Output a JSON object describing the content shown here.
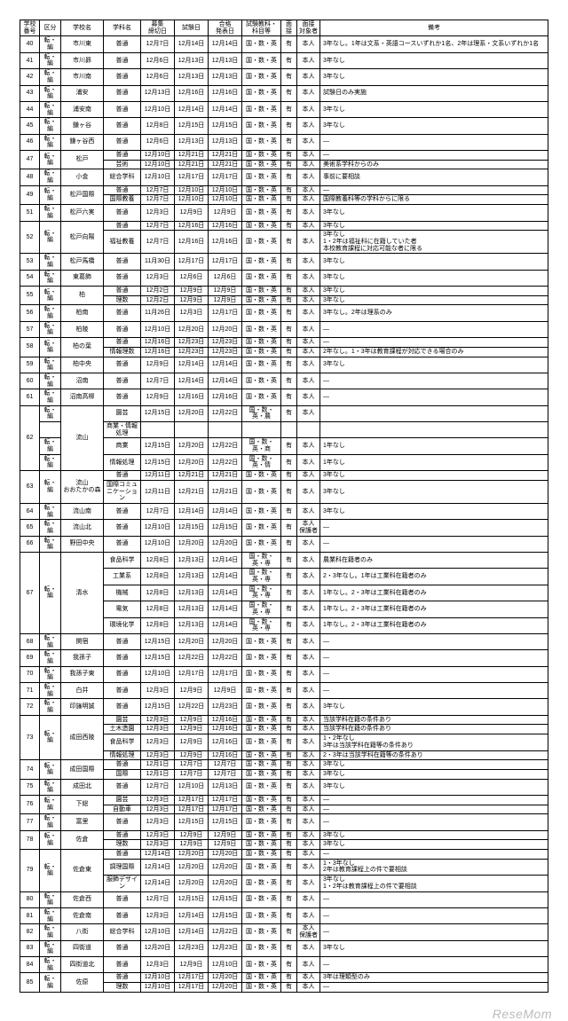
{
  "headers": [
    "学校\n番号",
    "区分",
    "学校名",
    "学科名",
    "募集\n締切日",
    "試験日",
    "合格\n発表日",
    "試験教科・\n科目等",
    "面接",
    "面接\n対象者",
    "備考"
  ],
  "footer": "ReseMom",
  "rows": [
    {
      "n": "40",
      "k": "転・編",
      "s": "市川東",
      "d": "普通",
      "a": "12月7日",
      "b": "12月14日",
      "c": "12月14日",
      "u": "国・数・英",
      "i": "有",
      "w": "本人",
      "r": "3年なし。1年は文系・英語コースいずれか1名、2年は理系・文系いずれか1名"
    },
    {
      "n": "41",
      "k": "転・編",
      "s": "市川昴",
      "d": "普通",
      "a": "12月6日",
      "b": "12月13日",
      "c": "12月13日",
      "u": "国・数・英",
      "i": "有",
      "w": "本人",
      "r": "3年なし"
    },
    {
      "n": "42",
      "k": "転・編",
      "s": "市川南",
      "d": "普通",
      "a": "12月6日",
      "b": "12月13日",
      "c": "12月13日",
      "u": "国・数・英",
      "i": "有",
      "w": "本人",
      "r": "3年なし"
    },
    {
      "n": "43",
      "k": "転・編",
      "s": "浦安",
      "d": "普通",
      "a": "12月13日",
      "b": "12月16日",
      "c": "12月16日",
      "u": "国・数・英",
      "i": "有",
      "w": "本人",
      "r": "試験日のみ実施"
    },
    {
      "n": "44",
      "k": "転・編",
      "s": "浦安南",
      "d": "普通",
      "a": "12月10日",
      "b": "12月14日",
      "c": "12月14日",
      "u": "国・数・英",
      "i": "有",
      "w": "本人",
      "r": "3年なし"
    },
    {
      "n": "45",
      "k": "転・編",
      "s": "鎌ヶ谷",
      "d": "普通",
      "a": "12月8日",
      "b": "12月15日",
      "c": "12月15日",
      "u": "国・数・英",
      "i": "有",
      "w": "本人",
      "r": "3年なし"
    },
    {
      "n": "46",
      "k": "転・編",
      "s": "鎌ヶ谷西",
      "d": "普通",
      "a": "12月6日",
      "b": "12月13日",
      "c": "12月13日",
      "u": "国・数・英",
      "i": "有",
      "w": "本人",
      "r": "—"
    },
    {
      "n": "47",
      "k": "転・編",
      "s": "松戸",
      "d": "普通",
      "a": "12月10日",
      "b": "12月21日",
      "c": "12月21日",
      "u": "国・数・英",
      "i": "有",
      "w": "本人",
      "r": "—",
      "rs": {
        "n": 2,
        "k": 2,
        "s": 2
      }
    },
    {
      "d": "芸術",
      "a": "12月10日",
      "b": "12月21日",
      "c": "12月21日",
      "u": "国・数・英",
      "i": "有",
      "w": "本人",
      "r": "美術系学科からのみ"
    },
    {
      "n": "48",
      "k": "転・編",
      "s": "小金",
      "d": "総合学科",
      "a": "12月10日",
      "b": "12月17日",
      "c": "12月17日",
      "u": "国・数・英",
      "i": "有",
      "w": "本人",
      "r": "事前に要相談"
    },
    {
      "n": "49",
      "k": "転・編",
      "s": "松戸国際",
      "d": "普通",
      "a": "12月7日",
      "b": "12月10日",
      "c": "12月10日",
      "u": "国・数・英",
      "i": "有",
      "w": "本人",
      "r": "—",
      "rs": {
        "n": 2,
        "k": 2,
        "s": 2
      }
    },
    {
      "d": "国際教養",
      "a": "12月7日",
      "b": "12月10日",
      "c": "12月10日",
      "u": "国・数・英",
      "i": "有",
      "w": "本人",
      "r": "国際教養科等の学科からに限る"
    },
    {
      "n": "51",
      "k": "転・編",
      "s": "松戸六実",
      "d": "普通",
      "a": "12月3日",
      "b": "12月9日",
      "c": "12月9日",
      "u": "国・数・英",
      "i": "有",
      "w": "本人",
      "r": "3年なし"
    },
    {
      "n": "52",
      "k": "転・編",
      "s": "松戸向陽",
      "d": "普通",
      "a": "12月7日",
      "b": "12月16日",
      "c": "12月16日",
      "u": "国・数・英",
      "i": "有",
      "w": "本人",
      "r": "3年なし",
      "rs": {
        "n": 2,
        "k": 2,
        "s": 2
      }
    },
    {
      "d": "福祉教養",
      "a": "12月7日",
      "b": "12月16日",
      "c": "12月16日",
      "u": "国・数・英",
      "i": "有",
      "w": "本人",
      "r": "3年なし\n1・2年は福祉科に在籍していた者\n本校教育課程に対応可能な者に限る"
    },
    {
      "n": "53",
      "k": "転・編",
      "s": "松戸馬橋",
      "d": "普通",
      "a": "11月30日",
      "b": "12月17日",
      "c": "12月17日",
      "u": "国・数・英",
      "i": "有",
      "w": "本人",
      "r": "3年なし"
    },
    {
      "n": "54",
      "k": "転・編",
      "s": "東葛飾",
      "d": "普通",
      "a": "12月3日",
      "b": "12月6日",
      "c": "12月6日",
      "u": "国・数・英",
      "i": "有",
      "w": "本人",
      "r": "3年なし"
    },
    {
      "n": "55",
      "k": "転・編",
      "s": "柏",
      "d": "普通",
      "a": "12月2日",
      "b": "12月9日",
      "c": "12月9日",
      "u": "国・数・英",
      "i": "有",
      "w": "本人",
      "r": "3年なし",
      "rs": {
        "n": 2,
        "k": 2,
        "s": 2
      }
    },
    {
      "d": "理数",
      "a": "12月2日",
      "b": "12月9日",
      "c": "12月9日",
      "u": "国・数・英",
      "i": "有",
      "w": "本人",
      "r": "3年なし"
    },
    {
      "n": "56",
      "k": "転・編",
      "s": "柏南",
      "d": "普通",
      "a": "11月26日",
      "b": "12月3日",
      "c": "12月17日",
      "u": "国・数・英",
      "i": "有",
      "w": "本人",
      "r": "3年なし。2年は理系のみ"
    },
    {
      "n": "57",
      "k": "転・編",
      "s": "柏陵",
      "d": "普通",
      "a": "12月10日",
      "b": "12月20日",
      "c": "12月20日",
      "u": "国・数・英",
      "i": "有",
      "w": "本人",
      "r": "—"
    },
    {
      "n": "58",
      "k": "転・編",
      "s": "柏の葉",
      "d": "普通",
      "a": "12月16日",
      "b": "12月23日",
      "c": "12月23日",
      "u": "国・数・英",
      "i": "有",
      "w": "本人",
      "r": "—",
      "rs": {
        "n": 2,
        "k": 2,
        "s": 2
      }
    },
    {
      "d": "情報理数",
      "a": "12月16日",
      "b": "12月23日",
      "c": "12月23日",
      "u": "国・数・英",
      "i": "有",
      "w": "本人",
      "r": "2年なし。1・3年は教育課程が対応できる場合のみ"
    },
    {
      "n": "59",
      "k": "転・編",
      "s": "柏中央",
      "d": "普通",
      "a": "12月9日",
      "b": "12月14日",
      "c": "12月14日",
      "u": "国・数・英",
      "i": "有",
      "w": "本人",
      "r": "3年なし"
    },
    {
      "n": "60",
      "k": "転・編",
      "s": "沼南",
      "d": "普通",
      "a": "12月7日",
      "b": "12月14日",
      "c": "12月14日",
      "u": "国・数・英",
      "i": "有",
      "w": "本人",
      "r": "—"
    },
    {
      "n": "61",
      "k": "転・編",
      "s": "沼南高柳",
      "d": "普通",
      "a": "12月9日",
      "b": "12月16日",
      "c": "12月16日",
      "u": "国・数・英",
      "i": "有",
      "w": "本人",
      "r": "—"
    },
    {
      "n": "62",
      "k": "転・編",
      "s": "流山",
      "d": "園芸",
      "a": "12月15日",
      "b": "12月20日",
      "c": "12月22日",
      "u": "国・数・英・農",
      "i": "有",
      "w": "本人",
      "r": "",
      "rs": {
        "n": 4,
        "s": 4
      }
    },
    {
      "k": "",
      "d": "商業・情報処理",
      "a": "",
      "b": "",
      "c": "",
      "u": "",
      "i": "",
      "w": "",
      "r": ""
    },
    {
      "k": "転・編",
      "d": "商業",
      "a": "12月15日",
      "b": "12月20日",
      "c": "12月22日",
      "u": "国・数・英・商",
      "i": "有",
      "w": "本人",
      "r": "1年なし"
    },
    {
      "k": "転・編",
      "d": "情報処理",
      "a": "12月15日",
      "b": "12月20日",
      "c": "12月22日",
      "u": "国・数・英・情",
      "i": "有",
      "w": "本人",
      "r": "1年なし"
    },
    {
      "n": "63",
      "k": "転・編",
      "s": "流山\nおおたかの森",
      "d": "普通",
      "a": "12月11日",
      "b": "12月21日",
      "c": "12月21日",
      "u": "国・数・英",
      "i": "有",
      "w": "本人",
      "r": "3年なし",
      "rs": {
        "n": 2,
        "k": 2,
        "s": 2
      }
    },
    {
      "d": "国際コミュニケーション",
      "a": "12月11日",
      "b": "12月21日",
      "c": "12月21日",
      "u": "国・数・英",
      "i": "有",
      "w": "本人",
      "r": "3年なし"
    },
    {
      "n": "64",
      "k": "転・編",
      "s": "流山南",
      "d": "普通",
      "a": "12月7日",
      "b": "12月14日",
      "c": "12月14日",
      "u": "国・数・英",
      "i": "有",
      "w": "本人",
      "r": "3年なし"
    },
    {
      "n": "65",
      "k": "転・編",
      "s": "流山北",
      "d": "普通",
      "a": "12月10日",
      "b": "12月15日",
      "c": "12月15日",
      "u": "国・数・英",
      "i": "有",
      "w": "本人\n保護者",
      "r": "—"
    },
    {
      "n": "66",
      "k": "転・編",
      "s": "野田中央",
      "d": "普通",
      "a": "12月10日",
      "b": "12月20日",
      "c": "12月20日",
      "u": "国・数・英",
      "i": "有",
      "w": "本人",
      "r": "—"
    },
    {
      "n": "67",
      "k": "転・編",
      "s": "清水",
      "d": "食品科学",
      "a": "12月8日",
      "b": "12月13日",
      "c": "12月14日",
      "u": "国・数・英・専",
      "i": "有",
      "w": "本人",
      "r": "農業科在籍者のみ",
      "rs": {
        "n": 5,
        "k": 5,
        "s": 5
      }
    },
    {
      "d": "工業系",
      "a": "12月8日",
      "b": "12月13日",
      "c": "12月14日",
      "u": "国・数・英・専",
      "i": "有",
      "w": "本人",
      "r": "2・3年なし。1年は工業科在籍者のみ"
    },
    {
      "d": "機械",
      "a": "12月8日",
      "b": "12月13日",
      "c": "12月14日",
      "u": "国・数・英・専",
      "i": "有",
      "w": "本人",
      "r": "1年なし。2・3年は工業科在籍者のみ"
    },
    {
      "d": "電気",
      "a": "12月8日",
      "b": "12月13日",
      "c": "12月14日",
      "u": "国・数・英・専",
      "i": "有",
      "w": "本人",
      "r": "1年なし。2・3年は工業科在籍者のみ"
    },
    {
      "d": "環境化学",
      "a": "12月8日",
      "b": "12月13日",
      "c": "12月14日",
      "u": "国・数・英・専",
      "i": "有",
      "w": "本人",
      "r": "1年なし。2・3年は工業科在籍者のみ"
    },
    {
      "n": "68",
      "k": "転・編",
      "s": "関宿",
      "d": "普通",
      "a": "12月15日",
      "b": "12月20日",
      "c": "12月20日",
      "u": "国・数・英",
      "i": "有",
      "w": "本人",
      "r": "—"
    },
    {
      "n": "69",
      "k": "転・編",
      "s": "我孫子",
      "d": "普通",
      "a": "12月15日",
      "b": "12月22日",
      "c": "12月22日",
      "u": "国・数・英",
      "i": "有",
      "w": "本人",
      "r": "—"
    },
    {
      "n": "70",
      "k": "転・編",
      "s": "我孫子東",
      "d": "普通",
      "a": "12月10日",
      "b": "12月17日",
      "c": "12月17日",
      "u": "国・数・英",
      "i": "有",
      "w": "本人",
      "r": "—"
    },
    {
      "n": "71",
      "k": "転・編",
      "s": "白井",
      "d": "普通",
      "a": "12月3日",
      "b": "12月9日",
      "c": "12月9日",
      "u": "国・数・英",
      "i": "有",
      "w": "本人",
      "r": "—"
    },
    {
      "n": "72",
      "k": "転・編",
      "s": "印旛明誠",
      "d": "普通",
      "a": "12月15日",
      "b": "12月22日",
      "c": "12月23日",
      "u": "国・数・英",
      "i": "有",
      "w": "本人",
      "r": "3年なし"
    },
    {
      "n": "73",
      "k": "転・編",
      "s": "成田西陵",
      "d": "園芸",
      "a": "12月3日",
      "b": "12月9日",
      "c": "12月16日",
      "u": "国・数・英",
      "i": "有",
      "w": "本人",
      "r": "当該学科在籍の条件あり",
      "rs": {
        "n": 4,
        "k": 4,
        "s": 4
      }
    },
    {
      "d": "土木造園",
      "a": "12月3日",
      "b": "12月9日",
      "c": "12月16日",
      "u": "国・数・英",
      "i": "有",
      "w": "本人",
      "r": "当該学科在籍の条件あり"
    },
    {
      "d": "食品科学",
      "a": "12月3日",
      "b": "12月9日",
      "c": "12月16日",
      "u": "国・数・英",
      "i": "有",
      "w": "本人",
      "r": "1・2年なし\n3年は当該学科在籍等の条件あり"
    },
    {
      "d": "情報処理",
      "a": "12月3日",
      "b": "12月9日",
      "c": "12月16日",
      "u": "国・数・英",
      "i": "有",
      "w": "本人",
      "r": "2・3年は当該学科在籍等の条件あり"
    },
    {
      "n": "74",
      "k": "転・編",
      "s": "成田国際",
      "d": "普通",
      "a": "12月1日",
      "b": "12月7日",
      "c": "12月7日",
      "u": "国・数・英",
      "i": "有",
      "w": "本人",
      "r": "3年なし",
      "rs": {
        "n": 2,
        "k": 2,
        "s": 2
      }
    },
    {
      "d": "国際",
      "a": "12月1日",
      "b": "12月7日",
      "c": "12月7日",
      "u": "国・数・英",
      "i": "有",
      "w": "本人",
      "r": "3年なし"
    },
    {
      "n": "75",
      "k": "転・編",
      "s": "成田北",
      "d": "普通",
      "a": "12月7日",
      "b": "12月10日",
      "c": "12月13日",
      "u": "国・数・英",
      "i": "有",
      "w": "本人",
      "r": "3年なし"
    },
    {
      "n": "76",
      "k": "転・編",
      "s": "下総",
      "d": "園芸",
      "a": "12月3日",
      "b": "12月17日",
      "c": "12月17日",
      "u": "国・数・英",
      "i": "有",
      "w": "本人",
      "r": "—",
      "rs": {
        "n": 2,
        "k": 2,
        "s": 2
      }
    },
    {
      "d": "自動車",
      "a": "12月3日",
      "b": "12月17日",
      "c": "12月17日",
      "u": "国・数・英",
      "i": "有",
      "w": "本人",
      "r": "—"
    },
    {
      "n": "77",
      "k": "転・編",
      "s": "富里",
      "d": "普通",
      "a": "12月3日",
      "b": "12月15日",
      "c": "12月15日",
      "u": "国・数・英",
      "i": "有",
      "w": "本人",
      "r": "—"
    },
    {
      "n": "78",
      "k": "転・編",
      "s": "佐倉",
      "d": "普通",
      "a": "12月3日",
      "b": "12月9日",
      "c": "12月9日",
      "u": "国・数・英",
      "i": "有",
      "w": "本人",
      "r": "3年なし",
      "rs": {
        "n": 2,
        "k": 2,
        "s": 2
      }
    },
    {
      "d": "理数",
      "a": "12月3日",
      "b": "12月9日",
      "c": "12月9日",
      "u": "国・数・英",
      "i": "有",
      "w": "本人",
      "r": "3年なし"
    },
    {
      "n": "79",
      "k": "転・編",
      "s": "佐倉東",
      "d": "普通",
      "a": "12月14日",
      "b": "12月20日",
      "c": "12月20日",
      "u": "国・数・英",
      "i": "有",
      "w": "本人",
      "r": "—",
      "rs": {
        "n": 3,
        "k": 3,
        "s": 3
      }
    },
    {
      "d": "調理国際",
      "a": "12月14日",
      "b": "12月20日",
      "c": "12月20日",
      "u": "国・数・英",
      "i": "有",
      "w": "本人",
      "r": "1・3年なし\n2年は教育課程上の件で要相談"
    },
    {
      "d": "服飾デザイン",
      "a": "12月14日",
      "b": "12月20日",
      "c": "12月20日",
      "u": "国・数・英",
      "i": "有",
      "w": "本人",
      "r": "3年なし\n1・2年は教育課程上の件で要相談"
    },
    {
      "n": "80",
      "k": "転・編",
      "s": "佐倉西",
      "d": "普通",
      "a": "12月7日",
      "b": "12月15日",
      "c": "12月15日",
      "u": "国・数・英",
      "i": "有",
      "w": "本人",
      "r": "—"
    },
    {
      "n": "81",
      "k": "転・編",
      "s": "佐倉南",
      "d": "普通",
      "a": "12月3日",
      "b": "12月14日",
      "c": "12月15日",
      "u": "国・数・英",
      "i": "有",
      "w": "本人",
      "r": "—"
    },
    {
      "n": "82",
      "k": "転・編",
      "s": "八街",
      "d": "総合学科",
      "a": "12月10日",
      "b": "12月14日",
      "c": "12月22日",
      "u": "国・数・英",
      "i": "有",
      "w": "本人\n保護者",
      "r": "—"
    },
    {
      "n": "83",
      "k": "転・編",
      "s": "四街道",
      "d": "普通",
      "a": "12月20日",
      "b": "12月23日",
      "c": "12月23日",
      "u": "国・数・英",
      "i": "有",
      "w": "本人",
      "r": "3年なし"
    },
    {
      "n": "84",
      "k": "転・編",
      "s": "四街道北",
      "d": "普通",
      "a": "12月3日",
      "b": "12月9日",
      "c": "12月10日",
      "u": "国・数・英",
      "i": "有",
      "w": "本人",
      "r": "—"
    },
    {
      "n": "85",
      "k": "転・編",
      "s": "佐原",
      "d": "普通",
      "a": "12月10日",
      "b": "12月17日",
      "c": "12月20日",
      "u": "国・数・英",
      "i": "有",
      "w": "本人",
      "r": "3年は理類型のみ",
      "rs": {
        "n": 2,
        "k": 2,
        "s": 2
      }
    },
    {
      "d": "理数",
      "a": "12月10日",
      "b": "12月17日",
      "c": "12月20日",
      "u": "国・数・英",
      "i": "有",
      "w": "本人",
      "r": "—"
    }
  ]
}
